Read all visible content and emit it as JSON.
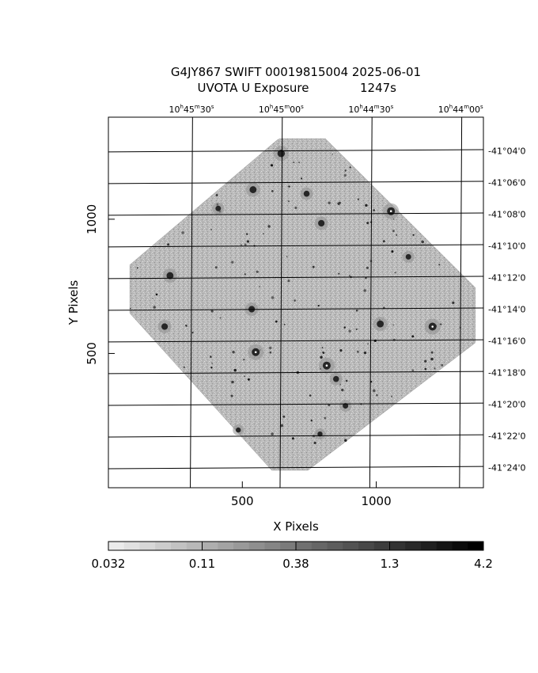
{
  "chart_data": {
    "type": "heatmap",
    "title": "G4JY867 SWIFT 00019815004 2025-06-01",
    "subtitle": "UVOTA U Exposure",
    "exposure": "1247s",
    "xlabel": "X Pixels",
    "ylabel": "Y Pixels",
    "x_ticks": [
      500,
      1000
    ],
    "y_ticks": [
      500,
      1000
    ],
    "xlim": [
      0,
      1400
    ],
    "ylim": [
      0,
      1380
    ],
    "ra_labels": [
      {
        "h": "10",
        "m": "45",
        "s": "30",
        "x": 310
      },
      {
        "h": "10",
        "m": "45",
        "s": "00",
        "x": 645
      },
      {
        "h": "10",
        "m": "44",
        "s": "30",
        "x": 980
      },
      {
        "h": "10",
        "m": "44",
        "s": "00",
        "x": 1315
      }
    ],
    "dec_labels": [
      {
        "label": "-41°04'0",
        "y": 1255
      },
      {
        "label": "-41°06'0",
        "y": 1137
      },
      {
        "label": "-41°08'0",
        "y": 1019
      },
      {
        "label": "-41°10'0",
        "y": 901
      },
      {
        "label": "-41°12'0",
        "y": 783
      },
      {
        "label": "-41°14'0",
        "y": 665
      },
      {
        "label": "-41°16'0",
        "y": 547
      },
      {
        "label": "-41°18'0",
        "y": 429
      },
      {
        "label": "-41°20'0",
        "y": 311
      },
      {
        "label": "-41°22'0",
        "y": 193
      },
      {
        "label": "-41°24'0",
        "y": 75
      }
    ],
    "colorbar": {
      "tick_labels": [
        "0.032",
        "0.11",
        "0.38",
        "1.3",
        "4.2"
      ],
      "scale": "log"
    },
    "field_outline": [
      [
        640,
        1300
      ],
      [
        810,
        1300
      ],
      [
        1370,
        745
      ],
      [
        1370,
        540
      ],
      [
        745,
        65
      ],
      [
        610,
        65
      ],
      [
        80,
        650
      ],
      [
        80,
        830
      ],
      [
        630,
        1295
      ]
    ],
    "bright_sources": [
      {
        "x": 645,
        "y": 1245,
        "v": 0.9
      },
      {
        "x": 540,
        "y": 1110,
        "v": 0.8
      },
      {
        "x": 740,
        "y": 1095,
        "v": 0.6
      },
      {
        "x": 1055,
        "y": 1030,
        "v": 1.0
      },
      {
        "x": 795,
        "y": 985,
        "v": 0.7
      },
      {
        "x": 410,
        "y": 1040,
        "v": 0.5
      },
      {
        "x": 230,
        "y": 790,
        "v": 0.8
      },
      {
        "x": 535,
        "y": 665,
        "v": 0.7
      },
      {
        "x": 210,
        "y": 600,
        "v": 0.7
      },
      {
        "x": 550,
        "y": 505,
        "v": 1.0
      },
      {
        "x": 815,
        "y": 455,
        "v": 1.0
      },
      {
        "x": 850,
        "y": 405,
        "v": 0.6
      },
      {
        "x": 1015,
        "y": 610,
        "v": 0.8
      },
      {
        "x": 1210,
        "y": 600,
        "v": 1.0
      },
      {
        "x": 1120,
        "y": 860,
        "v": 0.5
      },
      {
        "x": 885,
        "y": 305,
        "v": 0.5
      },
      {
        "x": 485,
        "y": 215,
        "v": 0.4
      },
      {
        "x": 790,
        "y": 200,
        "v": 0.4
      }
    ]
  }
}
